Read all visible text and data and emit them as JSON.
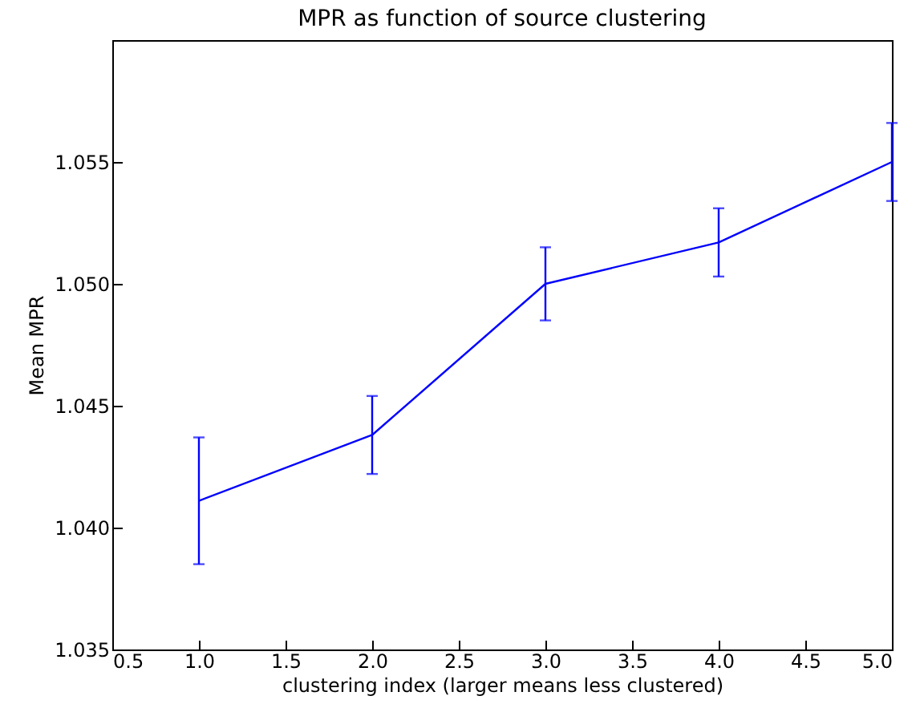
{
  "chart_data": {
    "type": "line",
    "title": "MPR as function of source clustering",
    "xlabel": "clustering index (larger means less clustered)",
    "ylabel": "Mean MPR",
    "x": [
      1,
      2,
      3,
      4,
      5
    ],
    "series": [
      {
        "color": "#0000ff",
        "values": [
          1.0411,
          1.0438,
          1.05,
          1.0517,
          1.055
        ],
        "errors": [
          0.0026,
          0.0016,
          0.0015,
          0.0014,
          0.0016
        ]
      }
    ],
    "xlim": [
      0.5,
      5.0
    ],
    "xticks": [
      0.5,
      {
        "value": 1,
        "label": "1.0"
      },
      1.5,
      {
        "value": 2,
        "label": "2.0"
      },
      2.5,
      {
        "value": 3,
        "label": "3.0"
      },
      3.5,
      {
        "value": 4,
        "label": "4.0"
      },
      4.5,
      {
        "value": 5,
        "label": "5.0"
      }
    ],
    "ylim": [
      1.035,
      1.06
    ],
    "yticks": [
      1.035,
      {
        "value": 1.04,
        "label": "1.040"
      },
      1.045,
      {
        "value": 1.05,
        "label": "1.050"
      },
      1.055
    ],
    "marker": "none",
    "line_style": "solid"
  }
}
